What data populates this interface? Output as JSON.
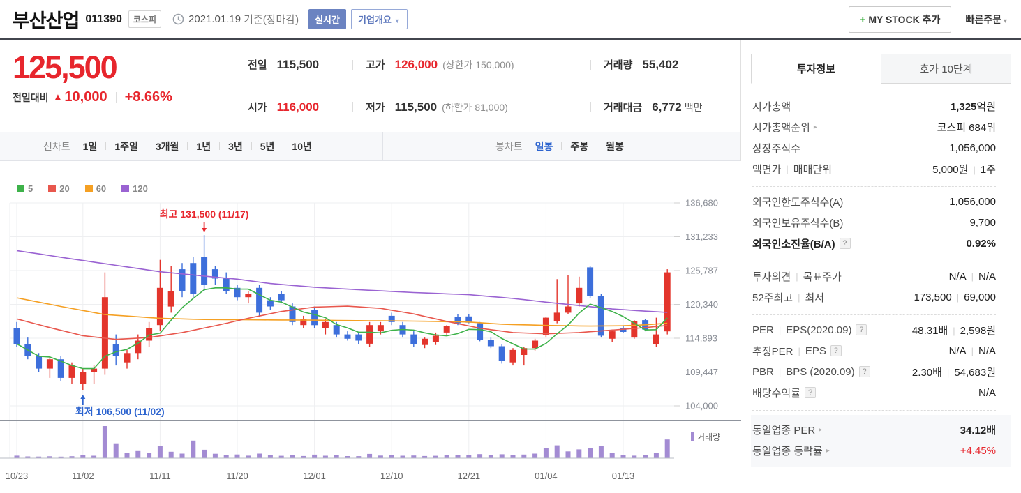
{
  "header": {
    "stock_name": "부산산업",
    "stock_code": "011390",
    "market_badge": "코스피",
    "date_text": "2021.01.19",
    "date_suffix": "기준(장마감)",
    "realtime_badge": "실시간",
    "overview_button": "기업개요",
    "my_stock_button": "MY STOCK 추가",
    "quick_order": "빠른주문"
  },
  "price": {
    "current": "125,500",
    "change_label": "전일대비",
    "up_symbol": "▲",
    "change_value": "10,000",
    "change_percent": "+8.66%"
  },
  "summary": {
    "prev_label": "전일",
    "prev_value": "115,500",
    "high_label": "고가",
    "high_value": "126,000",
    "high_limit": "(상한가 150,000)",
    "volume_label": "거래량",
    "volume_value": "55,402",
    "open_label": "시가",
    "open_value": "116,000",
    "low_label": "저가",
    "low_value": "115,500",
    "low_limit": "(하한가 81,000)",
    "amount_label": "거래대금",
    "amount_value": "6,772",
    "amount_unit": "백만"
  },
  "chart_tabs": {
    "line_label": "선차트",
    "line_items": [
      "1일",
      "1주일",
      "3개월",
      "1년",
      "3년",
      "5년",
      "10년"
    ],
    "candle_label": "봉차트",
    "candle_items": [
      "일봉",
      "주봉",
      "월봉"
    ],
    "selected": "일봉"
  },
  "chart_data": {
    "type": "candlestick+volume",
    "ylim": [
      104000,
      136680
    ],
    "y_ticks": [
      136680,
      131233,
      125787,
      120340,
      114893,
      109447,
      104000
    ],
    "x_ticks": [
      [
        "10/23",
        0
      ],
      [
        "11/02",
        6
      ],
      [
        "11/11",
        13
      ],
      [
        "11/20",
        20
      ],
      [
        "12/01",
        27
      ],
      [
        "12/10",
        34
      ],
      [
        "12/21",
        41
      ],
      [
        "01/04",
        48
      ],
      [
        "01/13",
        55
      ]
    ],
    "legend": [
      {
        "label": "5",
        "color": "#3eb24a"
      },
      {
        "label": "20",
        "color": "#e8574d"
      },
      {
        "label": "60",
        "color": "#f5a023"
      },
      {
        "label": "120",
        "color": "#9a63d2"
      }
    ],
    "volume_legend": "거래량",
    "high_annotation": {
      "text": "최고 131,500 (11/17)",
      "index": 17,
      "value": 131500,
      "color": "#e8262d"
    },
    "low_annotation": {
      "text": "최저 106,500 (11/02)",
      "index": 6,
      "value": 106500,
      "color": "#2d64cf"
    },
    "colors": {
      "up": "#e3352c",
      "down": "#3d6fdb",
      "volume": "#a38bd3",
      "grid": "#eeeff1",
      "axis_text": "#8b8f97",
      "date_text": "#666666",
      "baseline": "#b9bdc4",
      "separator": "#8f949d"
    },
    "dates": [
      "10/23",
      "10/26",
      "10/27",
      "10/28",
      "10/29",
      "10/30",
      "11/02",
      "11/03",
      "11/04",
      "11/05",
      "11/06",
      "11/09",
      "11/10",
      "11/11",
      "11/12",
      "11/13",
      "11/16",
      "11/17",
      "11/18",
      "11/19",
      "11/20",
      "11/23",
      "11/24",
      "11/25",
      "11/26",
      "11/27",
      "11/30",
      "12/01",
      "12/02",
      "12/03",
      "12/04",
      "12/07",
      "12/08",
      "12/09",
      "12/10",
      "12/11",
      "12/14",
      "12/15",
      "12/16",
      "12/17",
      "12/18",
      "12/21",
      "12/22",
      "12/23",
      "12/24",
      "12/28",
      "12/29",
      "12/30",
      "01/04",
      "01/05",
      "01/06",
      "01/07",
      "01/08",
      "01/11",
      "01/12",
      "01/13",
      "01/14",
      "01/15",
      "01/18",
      "01/19"
    ],
    "candles": [
      [
        116500,
        117500,
        113500,
        114000
      ],
      [
        114000,
        115000,
        111500,
        112000
      ],
      [
        112000,
        112500,
        109500,
        110000
      ],
      [
        110000,
        112000,
        108500,
        111500
      ],
      [
        111500,
        112000,
        108000,
        108500
      ],
      [
        108500,
        111000,
        107500,
        110500
      ],
      [
        107500,
        110000,
        106500,
        109500
      ],
      [
        109500,
        110500,
        107500,
        110000
      ],
      [
        110000,
        125500,
        109000,
        121500
      ],
      [
        114000,
        115500,
        110500,
        112000
      ],
      [
        111000,
        113000,
        110000,
        112500
      ],
      [
        112500,
        115500,
        111500,
        114500
      ],
      [
        114500,
        117500,
        113500,
        116500
      ],
      [
        117000,
        127500,
        116000,
        123000
      ],
      [
        120000,
        126500,
        119000,
        122500
      ],
      [
        126000,
        127000,
        121500,
        122500
      ],
      [
        127000,
        128000,
        121500,
        122000
      ],
      [
        128000,
        131500,
        122500,
        123500
      ],
      [
        126000,
        126500,
        123500,
        124500
      ],
      [
        124500,
        125500,
        122000,
        122500
      ],
      [
        123000,
        123500,
        121000,
        121500
      ],
      [
        121500,
        122500,
        120500,
        122000
      ],
      [
        123000,
        123500,
        118500,
        119000
      ],
      [
        121000,
        121500,
        119500,
        120000
      ],
      [
        122000,
        122500,
        120500,
        121000
      ],
      [
        120000,
        120500,
        117000,
        117500
      ],
      [
        117000,
        118500,
        116500,
        118000
      ],
      [
        119500,
        120000,
        116500,
        117000
      ],
      [
        116500,
        118000,
        115500,
        117500
      ],
      [
        117000,
        117500,
        115000,
        115500
      ],
      [
        115500,
        116000,
        114500,
        114800
      ],
      [
        115500,
        115800,
        114000,
        114500
      ],
      [
        114000,
        117500,
        113500,
        117000
      ],
      [
        116000,
        117500,
        115500,
        117000
      ],
      [
        118500,
        119000,
        117000,
        117500
      ],
      [
        117000,
        117500,
        115000,
        115500
      ],
      [
        115500,
        116000,
        113500,
        114000
      ],
      [
        113800,
        115000,
        113300,
        114800
      ],
      [
        114300,
        115800,
        113800,
        115300
      ],
      [
        115800,
        117000,
        115300,
        116800
      ],
      [
        118300,
        118800,
        117000,
        117300
      ],
      [
        118400,
        118800,
        117300,
        117400
      ],
      [
        117300,
        117500,
        114400,
        114600
      ],
      [
        114600,
        115000,
        113300,
        113600
      ],
      [
        113600,
        113900,
        110800,
        111300
      ],
      [
        111000,
        113300,
        110500,
        113000
      ],
      [
        112200,
        113500,
        110500,
        113300
      ],
      [
        113300,
        114800,
        112900,
        114500
      ],
      [
        115400,
        118300,
        115000,
        118200
      ],
      [
        117600,
        124400,
        117300,
        119000
      ],
      [
        119000,
        125000,
        118800,
        120000
      ],
      [
        120500,
        124800,
        120000,
        123000
      ],
      [
        126300,
        126500,
        121400,
        121700
      ],
      [
        121700,
        122000,
        115000,
        115300
      ],
      [
        114800,
        116300,
        114300,
        116000
      ],
      [
        116500,
        116800,
        115700,
        115900
      ],
      [
        115000,
        117800,
        114800,
        117600
      ],
      [
        117800,
        118000,
        116000,
        116300
      ],
      [
        114000,
        118200,
        113500,
        115500
      ],
      [
        116000,
        126000,
        115500,
        125500
      ]
    ],
    "volumes": [
      7500,
      5200,
      4800,
      5500,
      4600,
      5800,
      9500,
      7200,
      95000,
      42000,
      16000,
      21000,
      15000,
      36000,
      19000,
      13500,
      52000,
      25000,
      13000,
      9500,
      11000,
      7500,
      13500,
      8200,
      7000,
      9800,
      6500,
      10500,
      7300,
      8800,
      6200,
      5900,
      12500,
      7600,
      8900,
      7200,
      7800,
      6400,
      7100,
      9300,
      8500,
      10200,
      12000,
      8800,
      11500,
      9200,
      10800,
      13500,
      29000,
      38000,
      20000,
      26000,
      30500,
      36500,
      15500,
      9800,
      7400,
      9100,
      14500,
      55402
    ],
    "ma_keypoints": {
      "ma20": [
        [
          0,
          118000
        ],
        [
          3,
          116600
        ],
        [
          6,
          115300
        ],
        [
          9,
          114700
        ],
        [
          12,
          115000
        ],
        [
          15,
          115800
        ],
        [
          18,
          116900
        ],
        [
          21,
          118100
        ],
        [
          24,
          119200
        ],
        [
          27,
          119900
        ],
        [
          30,
          120050
        ],
        [
          33,
          119700
        ],
        [
          36,
          118800
        ],
        [
          39,
          117600
        ],
        [
          42,
          116500
        ],
        [
          45,
          115800
        ],
        [
          48,
          115600
        ],
        [
          51,
          115800
        ],
        [
          54,
          116200
        ],
        [
          57,
          116600
        ],
        [
          59,
          116950
        ]
      ],
      "ma60": [
        [
          0,
          121400
        ],
        [
          4,
          120000
        ],
        [
          8,
          118700
        ],
        [
          13,
          118100
        ],
        [
          17,
          117900
        ],
        [
          22,
          117850
        ],
        [
          27,
          117800
        ],
        [
          32,
          117700
        ],
        [
          36,
          117650
        ],
        [
          41,
          117500
        ],
        [
          44,
          117150
        ],
        [
          48,
          116950
        ],
        [
          52,
          116850
        ],
        [
          55,
          116900
        ],
        [
          57,
          117050
        ],
        [
          59,
          117300
        ]
      ],
      "ma120": [
        [
          0,
          129000
        ],
        [
          6,
          127400
        ],
        [
          13,
          125600
        ],
        [
          17,
          124900
        ],
        [
          20,
          124400
        ],
        [
          23,
          123700
        ],
        [
          27,
          123100
        ],
        [
          31,
          122700
        ],
        [
          36,
          122250
        ],
        [
          41,
          121900
        ],
        [
          45,
          121300
        ],
        [
          48,
          120700
        ],
        [
          51,
          120150
        ],
        [
          54,
          119600
        ],
        [
          57,
          119250
        ],
        [
          59,
          119050
        ]
      ]
    }
  },
  "side": {
    "tabs": [
      "투자정보",
      "호가 10단계"
    ],
    "active_tab": "투자정보",
    "help_symbol": "?",
    "arrow_symbol": "▸",
    "groups": [
      {
        "rows": [
          {
            "label": "시가총액",
            "value": "1,325",
            "strong_value": true,
            "suffix": "억원"
          },
          {
            "label": "시가총액순위",
            "arrow": true,
            "value": "코스피 684위"
          },
          {
            "label": "상장주식수",
            "value": "1,056,000"
          },
          {
            "label": "액면가",
            "label2": "매매단위",
            "value": "5,000원",
            "value2": "1주"
          }
        ]
      },
      {
        "rows": [
          {
            "label": "외국인한도주식수(A)",
            "value": "1,056,000"
          },
          {
            "label": "외국인보유주식수(B)",
            "value": "9,700"
          },
          {
            "label": "외국인소진율(B/A)",
            "help": true,
            "strong": true,
            "value": "0.92%",
            "strong_value": true
          }
        ]
      },
      {
        "rows": [
          {
            "label": "투자의견",
            "label2": "목표주가",
            "value": "N/A",
            "value2": "N/A"
          },
          {
            "label": "52주최고",
            "label2": "최저",
            "value": "173,500",
            "value2": "69,000"
          }
        ]
      },
      {
        "rows": [
          {
            "label": "PER",
            "label2": "EPS(2020.09)",
            "help": true,
            "value": "48.31배",
            "value2": "2,598원"
          },
          {
            "label": "추정PER",
            "label2": "EPS",
            "help": true,
            "value": "N/A",
            "value2": "N/A"
          },
          {
            "label": "PBR",
            "label2": "BPS (2020.09)",
            "help": true,
            "value": "2.30배",
            "value2": "54,683원"
          },
          {
            "label": "배당수익률",
            "help": true,
            "value": "N/A"
          }
        ]
      },
      {
        "last": true,
        "rows": [
          {
            "label": "동일업종 PER",
            "arrow": true,
            "value": "34.12배",
            "strong_value": true
          },
          {
            "label": "동일업종 등락률",
            "arrow": true,
            "value": "+4.45%",
            "red": true
          }
        ]
      }
    ]
  }
}
